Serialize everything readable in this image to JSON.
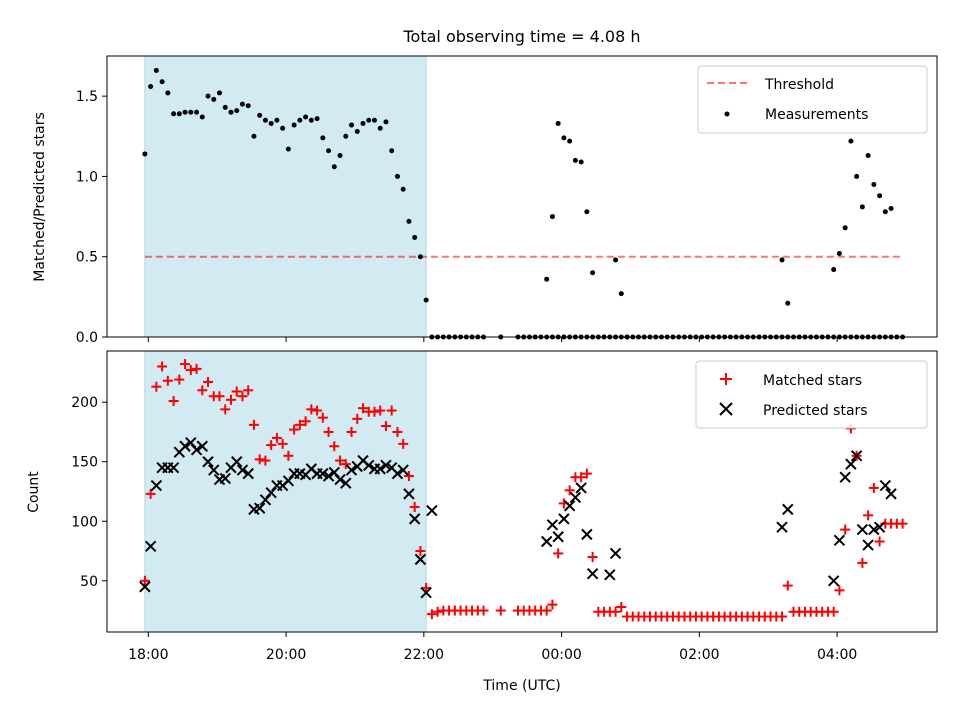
{
  "figure_title": "Total observing time = 4.08 h",
  "colors": {
    "shade": "#add8e6",
    "threshold": "#ff0000",
    "measurements": "#000000",
    "matched": "#ff0000",
    "predicted": "#000000"
  },
  "chart_data": [
    {
      "type": "scatter",
      "title": "Total observing time = 4.08 h",
      "xlabel": "",
      "ylabel": "Matched/Predicted stars",
      "ylim": [
        0,
        1.75
      ],
      "yticks": [
        "0.0",
        "0.5",
        "1.0",
        "1.5"
      ],
      "x_range_hours_since_18UTC": [
        -0.6,
        11.45
      ],
      "shaded_region": {
        "x_start": "17:57",
        "x_end": "22:02",
        "color": "lightblue"
      },
      "threshold": {
        "name": "Threshold",
        "y": 0.5,
        "x_start": "17:57",
        "x_end": "04:55",
        "style": "dashed"
      },
      "legend": {
        "placement": "upper right",
        "entries": [
          "Threshold",
          "Measurements"
        ]
      },
      "series": [
        {
          "name": "Measurements",
          "marker": "dot",
          "x": [
            "17:57",
            "18:02",
            "18:07",
            "18:12",
            "18:17",
            "18:22",
            "18:27",
            "18:32",
            "18:37",
            "18:42",
            "18:47",
            "18:52",
            "18:57",
            "19:02",
            "19:07",
            "19:12",
            "19:17",
            "19:22",
            "19:27",
            "19:32",
            "19:37",
            "19:42",
            "19:47",
            "19:52",
            "19:57",
            "20:02",
            "20:07",
            "20:12",
            "20:17",
            "20:22",
            "20:27",
            "20:32",
            "20:37",
            "20:42",
            "20:47",
            "20:52",
            "20:57",
            "21:02",
            "21:07",
            "21:12",
            "21:17",
            "21:22",
            "21:27",
            "21:32",
            "21:37",
            "21:42",
            "21:47",
            "21:52",
            "21:57",
            "22:02",
            "22:07",
            "22:12",
            "22:17",
            "22:22",
            "22:27",
            "22:32",
            "22:37",
            "22:42",
            "22:47",
            "22:52",
            "23:07",
            "23:22",
            "23:27",
            "23:32",
            "23:37",
            "23:42",
            "23:47",
            "23:52",
            "23:57",
            "00:02",
            "00:07",
            "00:12",
            "00:17",
            "00:22",
            "00:27",
            "00:32",
            "00:37",
            "00:42",
            "00:47",
            "00:52",
            "00:57",
            "01:02",
            "01:07",
            "01:12",
            "01:17",
            "01:22",
            "01:27",
            "01:32",
            "01:37",
            "01:42",
            "01:47",
            "01:52",
            "01:57",
            "02:02",
            "02:07",
            "02:12",
            "02:17",
            "02:22",
            "02:27",
            "02:32",
            "02:37",
            "02:42",
            "02:47",
            "02:52",
            "02:57",
            "03:02",
            "03:07",
            "03:12",
            "03:17",
            "03:22",
            "03:27",
            "03:32",
            "03:37",
            "03:42",
            "03:47",
            "03:52",
            "03:57",
            "04:02",
            "04:07",
            "04:12",
            "04:17",
            "04:22",
            "04:27",
            "04:32",
            "04:37",
            "04:42",
            "04:47",
            "04:52",
            "04:57"
          ],
          "y": [
            1.14,
            1.56,
            1.66,
            1.59,
            1.52,
            1.39,
            1.39,
            1.4,
            1.4,
            1.4,
            1.37,
            1.5,
            1.48,
            1.52,
            1.43,
            1.4,
            1.41,
            1.45,
            1.44,
            1.25,
            1.38,
            1.35,
            1.33,
            1.35,
            1.3,
            1.17,
            1.32,
            1.35,
            1.37,
            1.35,
            1.36,
            1.24,
            1.16,
            1.06,
            1.13,
            1.25,
            1.32,
            1.28,
            1.33,
            1.35,
            1.35,
            1.3,
            1.34,
            1.16,
            1.0,
            0.92,
            0.72,
            0.62,
            0.5,
            0.23,
            0.0,
            0.0,
            0.0,
            0.0,
            0.0,
            0.0,
            0.0,
            0.0,
            0.0,
            0.0,
            0.0,
            0.0,
            0.0,
            0.0,
            0.0,
            0.0,
            0.0,
            0.0,
            0.0,
            0.0,
            0.0,
            0.0,
            0.0,
            0.0,
            0.0,
            0.0,
            0.0,
            0.0,
            0.0,
            0.0,
            0.0,
            0.0,
            0.0,
            0.0,
            0.0,
            0.0,
            0.0,
            0.0,
            0.0,
            0.0,
            0.0,
            0.0,
            0.0,
            0.0,
            0.0,
            0.0,
            0.0,
            0.0,
            0.0,
            0.0,
            0.0,
            0.0,
            0.0,
            0.0,
            0.0,
            0.0,
            0.0,
            0.0,
            0.0,
            0.0,
            0.0,
            0.0,
            0.0,
            0.0,
            0.0,
            0.0,
            0.0,
            0.0,
            0.0,
            0.0,
            0.0,
            0.0,
            0.0,
            0.0,
            0.0,
            0.0,
            0.0,
            0.0,
            0.0
          ],
          "extra_points": {
            "x": [
              "23:47",
              "23:52",
              "23:57",
              "00:02",
              "00:07",
              "00:12",
              "00:17",
              "00:22",
              "00:27",
              "00:47",
              "00:52",
              "00:57",
              "03:12",
              "03:17",
              "03:57",
              "04:02",
              "04:07",
              "04:12",
              "04:17",
              "04:22",
              "04:27",
              "04:32",
              "04:37",
              "04:42",
              "04:47"
            ],
            "y": [
              0.36,
              0.75,
              1.33,
              1.24,
              1.22,
              1.1,
              1.09,
              0.78,
              0.4,
              0.48,
              0.27,
              0.0,
              0.48,
              0.21,
              0.42,
              0.52,
              0.68,
              1.22,
              1.0,
              0.81,
              1.13,
              0.95,
              0.88,
              0.78,
              0.8
            ]
          }
        }
      ]
    },
    {
      "type": "scatter",
      "title": "",
      "xlabel": "Time (UTC)",
      "ylabel": "Count",
      "ylim": [
        7,
        243
      ],
      "yticks": [
        "50",
        "100",
        "150",
        "200"
      ],
      "xticks": [
        "18:00",
        "20:00",
        "22:00",
        "00:00",
        "02:00",
        "04:00"
      ],
      "x_range_hours_since_18UTC": [
        -0.6,
        11.45
      ],
      "shaded_region": {
        "x_start": "17:57",
        "x_end": "22:02",
        "color": "lightblue"
      },
      "legend": {
        "placement": "upper right",
        "entries": [
          "Matched stars",
          "Predicted stars"
        ]
      },
      "series": [
        {
          "name": "Matched stars",
          "marker": "plus",
          "x": [
            "17:57",
            "18:02",
            "18:07",
            "18:12",
            "18:17",
            "18:22",
            "18:27",
            "18:32",
            "18:37",
            "18:42",
            "18:47",
            "18:52",
            "18:57",
            "19:02",
            "19:07",
            "19:12",
            "19:17",
            "19:22",
            "19:27",
            "19:32",
            "19:37",
            "19:42",
            "19:47",
            "19:52",
            "19:57",
            "20:02",
            "20:07",
            "20:12",
            "20:17",
            "20:22",
            "20:27",
            "20:32",
            "20:37",
            "20:42",
            "20:47",
            "20:52",
            "20:57",
            "21:02",
            "21:07",
            "21:12",
            "21:17",
            "21:22",
            "21:27",
            "21:32",
            "21:37",
            "21:42",
            "21:47",
            "21:52",
            "21:57",
            "22:02",
            "22:07",
            "22:12",
            "22:17",
            "22:22",
            "22:27",
            "22:32",
            "22:37",
            "22:42",
            "22:47",
            "22:52",
            "23:07",
            "23:22",
            "23:27",
            "23:32",
            "23:37",
            "23:42",
            "23:47",
            "23:52",
            "23:57",
            "00:02",
            "00:07",
            "00:12",
            "00:17",
            "00:22",
            "00:27",
            "00:32",
            "00:37",
            "00:42",
            "00:47",
            "00:52",
            "00:57",
            "01:02",
            "01:07",
            "01:12",
            "01:17",
            "01:22",
            "01:27",
            "01:32",
            "01:37",
            "01:42",
            "01:47",
            "01:52",
            "01:57",
            "02:02",
            "02:07",
            "02:12",
            "02:17",
            "02:22",
            "02:27",
            "02:32",
            "02:37",
            "02:42",
            "02:47",
            "02:52",
            "02:57",
            "03:02",
            "03:07",
            "03:12",
            "03:17",
            "03:22",
            "03:27",
            "03:32",
            "03:37",
            "03:42",
            "03:47",
            "03:52",
            "03:57",
            "04:02",
            "04:07",
            "04:12",
            "04:17",
            "04:22",
            "04:27",
            "04:32",
            "04:37",
            "04:42",
            "04:47",
            "04:52",
            "04:57"
          ],
          "y": [
            50,
            123,
            213,
            230,
            218,
            201,
            219,
            232,
            227,
            228,
            210,
            217,
            205,
            205,
            194,
            202,
            209,
            205,
            210,
            181,
            152,
            151,
            164,
            170,
            165,
            155,
            177,
            181,
            184,
            194,
            193,
            187,
            175,
            163,
            151,
            148,
            175,
            186,
            195,
            192,
            192,
            193,
            180,
            193,
            175,
            165,
            138,
            112,
            75,
            44,
            22,
            24,
            25,
            25,
            25,
            25,
            25,
            25,
            25,
            25,
            25,
            25,
            25,
            25,
            25,
            25,
            25,
            30,
            73,
            115,
            126,
            137,
            137,
            140,
            70,
            24,
            24,
            24,
            24,
            28,
            20,
            20,
            20,
            20,
            20,
            20,
            20,
            20,
            20,
            20,
            20,
            20,
            20,
            20,
            20,
            20,
            20,
            20,
            20,
            20,
            20,
            20,
            20,
            20,
            20,
            20,
            20,
            20,
            46,
            24,
            24,
            24,
            24,
            24,
            24,
            24,
            24,
            42,
            93,
            178,
            155,
            65,
            105,
            128,
            83,
            98,
            98,
            98,
            98
          ]
        },
        {
          "name": "Predicted stars",
          "marker": "x",
          "x": [
            "17:57",
            "18:02",
            "18:07",
            "18:12",
            "18:17",
            "18:22",
            "18:27",
            "18:32",
            "18:37",
            "18:42",
            "18:47",
            "18:52",
            "18:57",
            "19:02",
            "19:07",
            "19:12",
            "19:17",
            "19:22",
            "19:27",
            "19:32",
            "19:37",
            "19:42",
            "19:47",
            "19:52",
            "19:57",
            "20:02",
            "20:07",
            "20:12",
            "20:17",
            "20:22",
            "20:27",
            "20:32",
            "20:37",
            "20:42",
            "20:47",
            "20:52",
            "20:57",
            "21:02",
            "21:07",
            "21:12",
            "21:17",
            "21:22",
            "21:27",
            "21:32",
            "21:37",
            "21:42",
            "21:47",
            "21:52",
            "21:57",
            "22:02",
            "22:07",
            "23:47",
            "23:52",
            "23:57",
            "00:02",
            "00:07",
            "00:12",
            "00:17",
            "00:22",
            "00:27",
            "00:42",
            "00:47",
            "03:12",
            "03:17",
            "03:57",
            "04:02",
            "04:07",
            "04:12",
            "04:17",
            "04:22",
            "04:27",
            "04:32",
            "04:37",
            "04:42",
            "04:47"
          ],
          "y": [
            45,
            79,
            130,
            145,
            145,
            145,
            158,
            163,
            166,
            160,
            163,
            150,
            143,
            135,
            136,
            145,
            150,
            143,
            140,
            110,
            111,
            118,
            124,
            130,
            130,
            134,
            140,
            140,
            139,
            144,
            140,
            140,
            138,
            141,
            135,
            132,
            143,
            146,
            151,
            147,
            144,
            144,
            147,
            145,
            140,
            143,
            123,
            102,
            68,
            40,
            109,
            83,
            97,
            87,
            102,
            113,
            120,
            128,
            89,
            56,
            55,
            73,
            95,
            110,
            50,
            84,
            137,
            148,
            155,
            93,
            80,
            93,
            95,
            130,
            123
          ]
        }
      ]
    }
  ]
}
